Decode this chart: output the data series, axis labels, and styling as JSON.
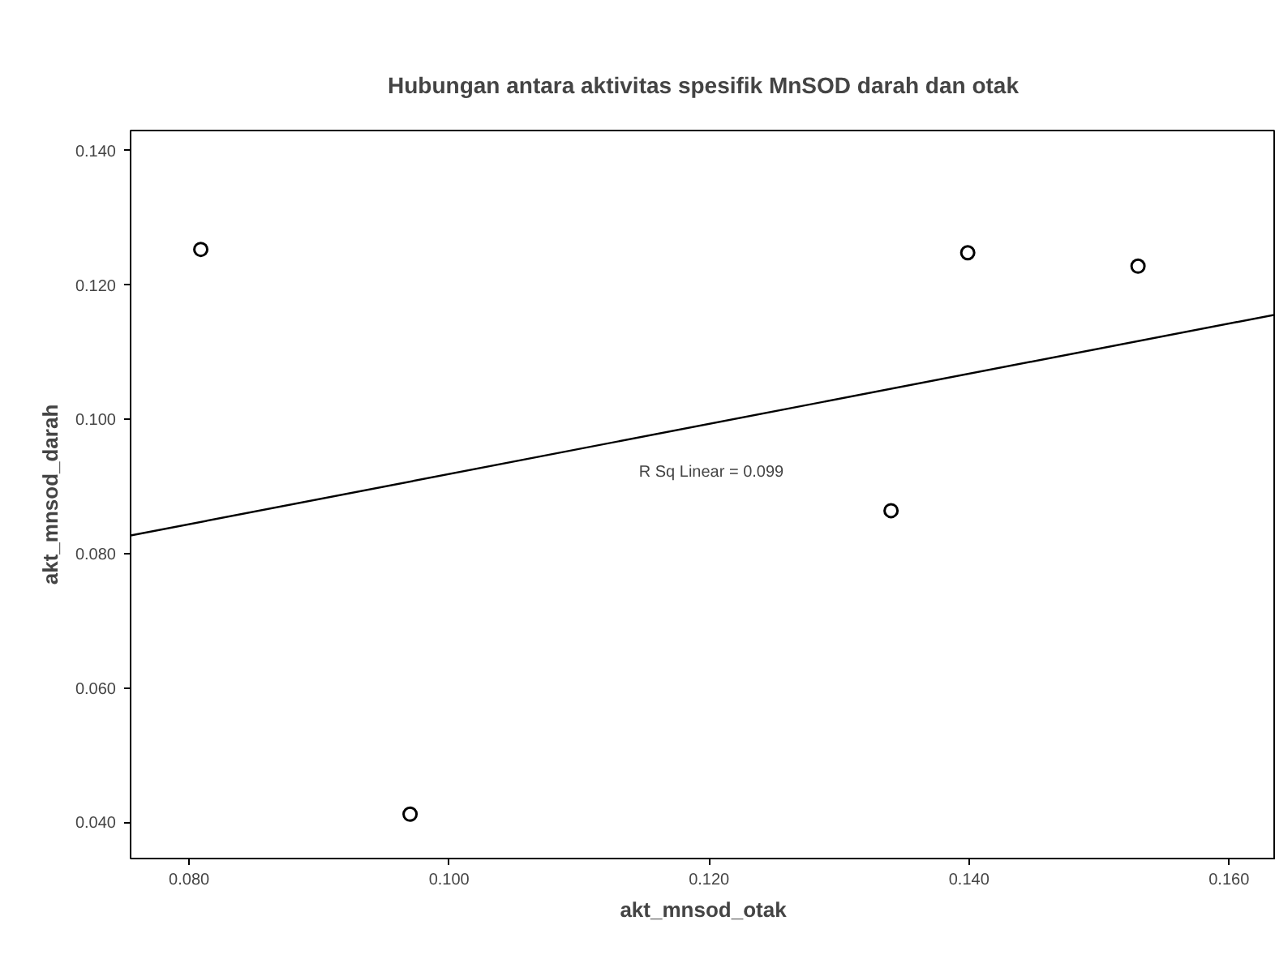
{
  "chart_data": {
    "type": "scatter",
    "title": "Hubungan antara aktivitas spesifik MnSOD darah dan otak",
    "xlabel": "akt_mnsod_otak",
    "ylabel": "akt_mnsod_darah",
    "x": [
      0.0809,
      0.097,
      0.134,
      0.1399,
      0.153
    ],
    "series": [
      {
        "color": "#000000",
        "values": [
          0.1253,
          0.0412,
          0.0864,
          0.1248,
          0.1228
        ],
        "marker": "circle"
      },
      {
        "type": "line",
        "color": "#000000",
        "x": [
          0.0755,
          0.1636
        ],
        "values": [
          0.0827,
          0.1156
        ]
      }
    ],
    "annotations": [
      "R Sq Linear = 0.099"
    ],
    "xlim": [
      0.0755,
      0.1636
    ],
    "ylim": [
      0.0346,
      0.143
    ],
    "xticks": [
      {
        "value": 0.08,
        "label": "0.080"
      },
      {
        "value": 0.1,
        "label": "0.100"
      },
      {
        "value": 0.12,
        "label": "0.120"
      },
      {
        "value": 0.14,
        "label": "0.140"
      },
      {
        "value": 0.16,
        "label": "0.160"
      }
    ],
    "yticks": [
      {
        "value": 0.04,
        "label": "0.040"
      },
      {
        "value": 0.06,
        "label": "0.060"
      },
      {
        "value": 0.08,
        "label": "0.080"
      },
      {
        "value": 0.1,
        "label": "0.100"
      },
      {
        "value": 0.12,
        "label": "0.120"
      },
      {
        "value": 0.14,
        "label": "0.140"
      }
    ],
    "grid": false
  }
}
